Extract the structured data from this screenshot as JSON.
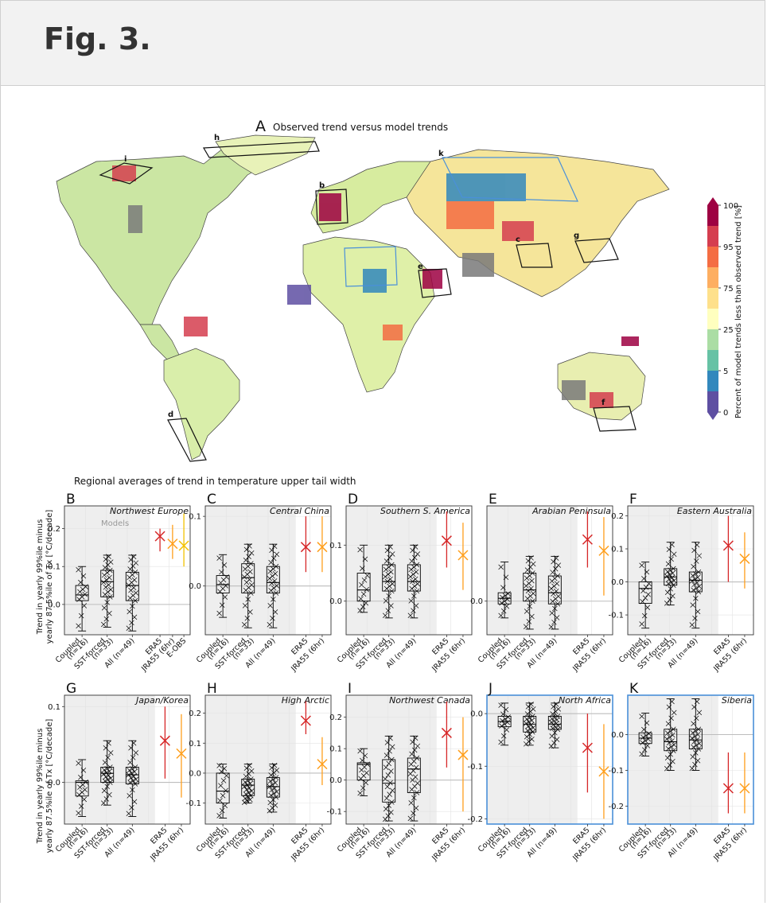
{
  "figure_title": "Fig. 3.",
  "map": {
    "panel_letter": "A",
    "title": "Observed trend versus model trends",
    "boxes": [
      "h",
      "i",
      "k",
      "b",
      "c",
      "g",
      "e",
      "d",
      "f"
    ],
    "colorbar": {
      "label": "Percent of model trends less than observed trend [%]",
      "ticks": [
        "100",
        "95",
        "75",
        "25",
        "5",
        "0"
      ],
      "colors": [
        "#9e0142",
        "#d53e4f",
        "#f46d43",
        "#fdae61",
        "#fee08b",
        "#ffffbf",
        "#abdda4",
        "#66c2a5",
        "#3288bd",
        "#5e4fa2"
      ]
    }
  },
  "section_title": "Regional averages of trend in temperature upper tail width",
  "ylabel_line1": "Trend in yearly 99%ile minus",
  "ylabel_line2": "yearly 87.5%ile of Tx [°C/decade]",
  "models_label": "Models",
  "colors": {
    "coupled": "#000000",
    "era5": "#d62728",
    "jra55": "#ff9f1c",
    "eobs": "#f2c200",
    "highlight": "#4a90d9",
    "shade": "#eeeeee"
  },
  "chart_data": [
    {
      "type": "box",
      "panel": "B",
      "region": "Northwest Europe",
      "yticks": [
        "0.0",
        "0.1",
        "0.2"
      ],
      "ytick_values": [
        0,
        0.1,
        0.2
      ],
      "ylim": [
        -0.08,
        0.26
      ],
      "categories": [
        "Coupled\n(n=16)",
        "SST-forced\n(n=33)",
        "All (n=49)",
        "ERA5",
        "JRA55 (6hr)",
        "E-OBS"
      ],
      "boxes": [
        {
          "q1": 0.01,
          "median": 0.025,
          "q3": 0.05,
          "whislo": -0.07,
          "whishi": 0.1
        },
        {
          "q1": 0.02,
          "median": 0.06,
          "q3": 0.09,
          "whislo": -0.06,
          "whishi": 0.13
        },
        {
          "q1": 0.01,
          "median": 0.05,
          "q3": 0.085,
          "whislo": -0.07,
          "whishi": 0.13
        }
      ],
      "obs": [
        {
          "name": "ERA5",
          "value": 0.18,
          "lo": 0.14,
          "hi": 0.2
        },
        {
          "name": "JRA55 (6hr)",
          "value": 0.16,
          "lo": 0.12,
          "hi": 0.21
        },
        {
          "name": "E-OBS",
          "value": 0.155,
          "lo": 0.1,
          "hi": 0.24
        }
      ]
    },
    {
      "type": "box",
      "panel": "C",
      "region": "Central China",
      "yticks": [
        "0.0",
        "0.1"
      ],
      "ytick_values": [
        0,
        0.1
      ],
      "ylim": [
        -0.07,
        0.115
      ],
      "categories": [
        "Coupled\n(n=16)",
        "SST-forced\n(n=33)",
        "All (n=49)",
        "ERA5",
        "JRA55 (6hr)"
      ],
      "boxes": [
        {
          "q1": -0.01,
          "median": 0.002,
          "q3": 0.015,
          "whislo": -0.045,
          "whishi": 0.045
        },
        {
          "q1": -0.01,
          "median": 0.012,
          "q3": 0.032,
          "whislo": -0.06,
          "whishi": 0.06
        },
        {
          "q1": -0.01,
          "median": 0.005,
          "q3": 0.028,
          "whislo": -0.06,
          "whishi": 0.06
        }
      ],
      "obs": [
        {
          "name": "ERA5",
          "value": 0.056,
          "lo": 0.02,
          "hi": 0.1
        },
        {
          "name": "JRA55 (6hr)",
          "value": 0.056,
          "lo": 0.02,
          "hi": 0.1
        }
      ]
    },
    {
      "type": "box",
      "panel": "D",
      "region": "Southern S. America",
      "yticks": [
        "0.0",
        "0.1"
      ],
      "ytick_values": [
        0,
        0.1
      ],
      "ylim": [
        -0.06,
        0.17
      ],
      "categories": [
        "Coupled\n(n=16)",
        "SST-forced\n(n=33)",
        "All (n=49)",
        "ERA5",
        "JRA55 (6hr)"
      ],
      "boxes": [
        {
          "q1": 0.0,
          "median": 0.02,
          "q3": 0.05,
          "whislo": -0.02,
          "whishi": 0.1
        },
        {
          "q1": 0.018,
          "median": 0.035,
          "q3": 0.065,
          "whislo": -0.03,
          "whishi": 0.1
        },
        {
          "q1": 0.018,
          "median": 0.035,
          "q3": 0.065,
          "whislo": -0.03,
          "whishi": 0.1
        }
      ],
      "obs": [
        {
          "name": "ERA5",
          "value": 0.108,
          "lo": 0.06,
          "hi": 0.16
        },
        {
          "name": "JRA55 (6hr)",
          "value": 0.082,
          "lo": 0.02,
          "hi": 0.14
        }
      ]
    },
    {
      "type": "box",
      "panel": "E",
      "region": "Arabian Peninsula",
      "yticks": [
        "0.0"
      ],
      "ytick_values": [
        0
      ],
      "ylim": [
        -0.06,
        0.17
      ],
      "categories": [
        "Coupled\n(n=16)",
        "SST-forced\n(n=33)",
        "All (n=49)",
        "ERA5",
        "JRA55 (6hr)"
      ],
      "boxes": [
        {
          "q1": -0.005,
          "median": 0.005,
          "q3": 0.015,
          "whislo": -0.03,
          "whishi": 0.07
        },
        {
          "q1": 0.0,
          "median": 0.02,
          "q3": 0.05,
          "whislo": -0.05,
          "whishi": 0.08
        },
        {
          "q1": -0.005,
          "median": 0.015,
          "q3": 0.045,
          "whislo": -0.05,
          "whishi": 0.08
        }
      ],
      "obs": [
        {
          "name": "ERA5",
          "value": 0.11,
          "lo": 0.06,
          "hi": 0.16
        },
        {
          "name": "JRA55 (6hr)",
          "value": 0.09,
          "lo": 0.01,
          "hi": 0.15
        }
      ]
    },
    {
      "type": "box",
      "panel": "F",
      "region": "Eastern Australia",
      "yticks": [
        "-0.1",
        "0.0",
        "0.1",
        "0.2"
      ],
      "ytick_values": [
        -0.1,
        0,
        0.1,
        0.2
      ],
      "ylim": [
        -0.16,
        0.23
      ],
      "categories": [
        "Coupled\n(n=16)",
        "SST-forced\n(n=33)",
        "All (n=49)",
        "ERA5",
        "JRA55 (6hr)"
      ],
      "boxes": [
        {
          "q1": -0.065,
          "median": -0.02,
          "q3": 0.0,
          "whislo": -0.14,
          "whishi": 0.06
        },
        {
          "q1": -0.01,
          "median": 0.015,
          "q3": 0.04,
          "whislo": -0.07,
          "whishi": 0.12
        },
        {
          "q1": -0.03,
          "median": 0.005,
          "q3": 0.03,
          "whislo": -0.14,
          "whishi": 0.12
        }
      ],
      "obs": [
        {
          "name": "ERA5",
          "value": 0.11,
          "lo": 0.0,
          "hi": 0.2
        },
        {
          "name": "JRA55 (6hr)",
          "value": 0.07,
          "lo": -0.02,
          "hi": 0.15
        }
      ]
    },
    {
      "type": "box",
      "panel": "G",
      "region": "Japan/Korea",
      "yticks": [
        "0.0",
        "0.1"
      ],
      "ytick_values": [
        0,
        0.1
      ],
      "ylim": [
        -0.055,
        0.115
      ],
      "categories": [
        "Coupled\n(n=16)",
        "SST-forced\n(n=33)",
        "All (n=49)",
        "ERA5",
        "JRA55 (6hr)"
      ],
      "boxes": [
        {
          "q1": -0.018,
          "median": 0.0,
          "q3": 0.002,
          "whislo": -0.045,
          "whishi": 0.03
        },
        {
          "q1": 0.0,
          "median": 0.012,
          "q3": 0.02,
          "whislo": -0.03,
          "whishi": 0.055
        },
        {
          "q1": -0.002,
          "median": 0.01,
          "q3": 0.02,
          "whislo": -0.045,
          "whishi": 0.055
        }
      ],
      "obs": [
        {
          "name": "ERA5",
          "value": 0.055,
          "lo": 0.005,
          "hi": 0.1
        },
        {
          "name": "JRA55 (6hr)",
          "value": 0.038,
          "lo": -0.02,
          "hi": 0.09
        }
      ]
    },
    {
      "type": "box",
      "panel": "H",
      "region": "High Arctic",
      "yticks": [
        "-0.1",
        "0.0",
        "0.1",
        "0.2"
      ],
      "ytick_values": [
        -0.1,
        0,
        0.1,
        0.2
      ],
      "ylim": [
        -0.17,
        0.26
      ],
      "categories": [
        "Coupled\n(n=16)",
        "SST-forced\n(n=33)",
        "All (n=49)",
        "ERA5",
        "JRA55 (6hr)"
      ],
      "boxes": [
        {
          "q1": -0.1,
          "median": -0.06,
          "q3": 0.0,
          "whislo": -0.15,
          "whishi": 0.03
        },
        {
          "q1": -0.075,
          "median": -0.04,
          "q3": -0.02,
          "whislo": -0.1,
          "whishi": 0.03
        },
        {
          "q1": -0.08,
          "median": -0.045,
          "q3": -0.015,
          "whislo": -0.13,
          "whishi": 0.03
        }
      ],
      "obs": [
        {
          "name": "ERA5",
          "value": 0.175,
          "lo": 0.13,
          "hi": 0.24
        },
        {
          "name": "JRA55 (6hr)",
          "value": 0.03,
          "lo": -0.04,
          "hi": 0.12
        }
      ]
    },
    {
      "type": "box",
      "panel": "I",
      "region": "Northwest Canada",
      "yticks": [
        "-0.1",
        "0.0",
        "0.1",
        "0.2"
      ],
      "ytick_values": [
        -0.1,
        0,
        0.1,
        0.2
      ],
      "ylim": [
        -0.14,
        0.27
      ],
      "categories": [
        "Coupled\n(n=16)",
        "SST-forced\n(n=33)",
        "All (n=49)",
        "ERA5",
        "JRA55 (6hr)"
      ],
      "boxes": [
        {
          "q1": 0.0,
          "median": 0.05,
          "q3": 0.055,
          "whislo": -0.05,
          "whishi": 0.1
        },
        {
          "q1": -0.07,
          "median": -0.01,
          "q3": 0.065,
          "whislo": -0.13,
          "whishi": 0.14
        },
        {
          "q1": -0.04,
          "median": 0.035,
          "q3": 0.07,
          "whislo": -0.13,
          "whishi": 0.14
        }
      ],
      "obs": [
        {
          "name": "ERA5",
          "value": 0.15,
          "lo": 0.04,
          "hi": 0.25
        },
        {
          "name": "JRA55 (6hr)",
          "value": 0.08,
          "lo": -0.1,
          "hi": 0.2
        }
      ]
    },
    {
      "type": "box",
      "panel": "J",
      "region": "North Africa",
      "highlight": true,
      "yticks": [
        "-0.2",
        "-0.1",
        "0.0"
      ],
      "ytick_values": [
        -0.2,
        -0.1,
        0
      ],
      "ylim": [
        -0.21,
        0.035
      ],
      "categories": [
        "Coupled\n(n=16)",
        "SST-forced\n(n=33)",
        "All (n=49)",
        "ERA5",
        "JRA55 (6hr)"
      ],
      "boxes": [
        {
          "q1": -0.025,
          "median": -0.015,
          "q3": -0.005,
          "whislo": -0.06,
          "whishi": 0.02
        },
        {
          "q1": -0.035,
          "median": -0.02,
          "q3": -0.005,
          "whislo": -0.06,
          "whishi": 0.02
        },
        {
          "q1": -0.03,
          "median": -0.02,
          "q3": -0.005,
          "whislo": -0.065,
          "whishi": 0.02
        }
      ],
      "obs": [
        {
          "name": "ERA5",
          "value": -0.065,
          "lo": -0.15,
          "hi": 0.0
        },
        {
          "name": "JRA55 (6hr)",
          "value": -0.11,
          "lo": -0.2,
          "hi": -0.02
        }
      ]
    },
    {
      "type": "box",
      "panel": "K",
      "region": "Siberia",
      "highlight": true,
      "yticks": [
        "-0.2",
        "-0.1",
        "0.0"
      ],
      "ytick_values": [
        -0.2,
        -0.1,
        0
      ],
      "ylim": [
        -0.25,
        0.11
      ],
      "categories": [
        "Coupled\n(n=16)",
        "SST-forced\n(n=33)",
        "All (n=49)",
        "ERA5",
        "JRA55 (6hr)"
      ],
      "boxes": [
        {
          "q1": -0.025,
          "median": -0.01,
          "q3": 0.005,
          "whislo": -0.06,
          "whishi": 0.06
        },
        {
          "q1": -0.045,
          "median": -0.02,
          "q3": 0.015,
          "whislo": -0.1,
          "whishi": 0.1
        },
        {
          "q1": -0.04,
          "median": -0.015,
          "q3": 0.015,
          "whislo": -0.1,
          "whishi": 0.1
        }
      ],
      "obs": [
        {
          "name": "ERA5",
          "value": -0.15,
          "lo": -0.22,
          "hi": -0.05
        },
        {
          "name": "JRA55 (6hr)",
          "value": -0.15,
          "lo": -0.22,
          "hi": -0.05
        }
      ]
    }
  ]
}
